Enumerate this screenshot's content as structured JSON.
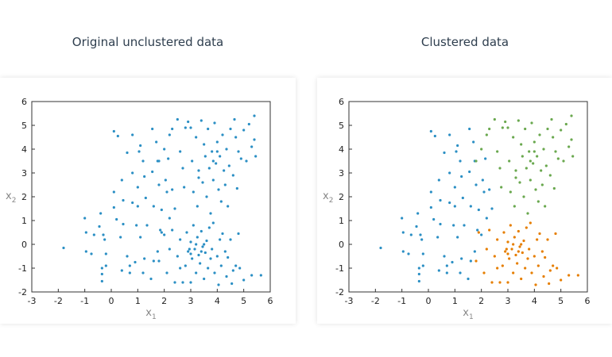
{
  "chart_data": {
    "type": "scatter",
    "xlim": [
      -3,
      6
    ],
    "ylim": [
      -2,
      6
    ],
    "xticks": [
      -3,
      -2,
      -1,
      0,
      1,
      2,
      3,
      4,
      5,
      6
    ],
    "yticks": [
      -2,
      -1,
      0,
      1,
      2,
      3,
      4,
      5,
      6
    ],
    "xlabel": "x",
    "xlabel_sub": "1",
    "ylabel": "x",
    "ylabel_sub": "2",
    "grid": false,
    "colors": {
      "unclustered": "#2b8fc4",
      "clusters": [
        "#2b8fc4",
        "#e67e00",
        "#6aa84f"
      ]
    },
    "charts": [
      {
        "title": "Original unclustered data",
        "colored_by_cluster": false
      },
      {
        "title": "Clustered data",
        "colored_by_cluster": true
      }
    ],
    "points": [
      [
        -1.8,
        -0.15,
        0
      ],
      [
        -1,
        1.1,
        0
      ],
      [
        -0.95,
        0.5,
        0
      ],
      [
        -0.95,
        -0.3,
        0
      ],
      [
        -0.75,
        -0.4,
        0
      ],
      [
        -0.65,
        0.4,
        0
      ],
      [
        -0.45,
        0.75,
        0
      ],
      [
        -0.4,
        1.3,
        0
      ],
      [
        -0.35,
        -1,
        0
      ],
      [
        -0.35,
        -1.25,
        0
      ],
      [
        -0.35,
        -1.55,
        0
      ],
      [
        -0.3,
        0.4,
        0
      ],
      [
        -0.25,
        0.2,
        0
      ],
      [
        -0.2,
        -0.4,
        0
      ],
      [
        -0.2,
        -0.9,
        0
      ],
      [
        0.1,
        4.75,
        0
      ],
      [
        0.25,
        4.55,
        0
      ],
      [
        0.1,
        2.2,
        0
      ],
      [
        0.1,
        1.55,
        0
      ],
      [
        0.2,
        1.05,
        0
      ],
      [
        0.4,
        2.7,
        0
      ],
      [
        0.45,
        1.85,
        0
      ],
      [
        0.6,
        3.85,
        0
      ],
      [
        0.8,
        4.6,
        0
      ],
      [
        0.8,
        3,
        0
      ],
      [
        0.8,
        1.75,
        0
      ],
      [
        0.7,
        -0.9,
        0
      ],
      [
        0.7,
        -1.2,
        0
      ],
      [
        0.95,
        0.8,
        0
      ],
      [
        1,
        2.4,
        0
      ],
      [
        1.05,
        3.9,
        0
      ],
      [
        1.1,
        4.15,
        0
      ],
      [
        1.2,
        3.5,
        0
      ],
      [
        1.25,
        2.85,
        0
      ],
      [
        1.3,
        1.95,
        0
      ],
      [
        1.25,
        -0.6,
        0
      ],
      [
        1.35,
        0.8,
        0
      ],
      [
        1.5,
        -1.45,
        0
      ],
      [
        1.55,
        4.85,
        0
      ],
      [
        1.55,
        3.05,
        0
      ],
      [
        1.6,
        1.6,
        0
      ],
      [
        1.7,
        4.3,
        0
      ],
      [
        1.75,
        3.5,
        0
      ],
      [
        1.8,
        2.5,
        0
      ],
      [
        1.85,
        0.6,
        0
      ],
      [
        1.9,
        1.45,
        0
      ],
      [
        2.05,
        2.7,
        0
      ],
      [
        2.1,
        2.2,
        0
      ],
      [
        2.15,
        3.6,
        0
      ],
      [
        2.2,
        1.1,
        0
      ],
      [
        2.3,
        2.3,
        0
      ],
      [
        2.4,
        1.5,
        0
      ],
      [
        1.0,
        1.6,
        0
      ],
      [
        0.4,
        -1.1,
        0
      ],
      [
        0.6,
        -0.5,
        0
      ],
      [
        1.1,
        0.3,
        0
      ],
      [
        0.45,
        0.85,
        0
      ],
      [
        0.9,
        -0.75,
        0
      ],
      [
        1.2,
        -1.2,
        0
      ],
      [
        1.6,
        -0.7,
        0
      ],
      [
        1.75,
        -0.3,
        0
      ],
      [
        2,
        0.4,
        0
      ],
      [
        0.35,
        0.3,
        0
      ],
      [
        1.8,
        -0.7,
        1
      ],
      [
        1.9,
        0.5,
        1
      ],
      [
        2.1,
        -1.2,
        1
      ],
      [
        2.2,
        -0.2,
        1
      ],
      [
        2.3,
        0.6,
        1
      ],
      [
        2.4,
        -1.6,
        1
      ],
      [
        2.5,
        -0.5,
        1
      ],
      [
        2.6,
        0.2,
        1
      ],
      [
        2.7,
        -1.6,
        1
      ],
      [
        2.8,
        -0.9,
        1
      ],
      [
        2.85,
        0.5,
        1
      ],
      [
        2.9,
        -0.3,
        1
      ],
      [
        3,
        0.1,
        1
      ],
      [
        3,
        -1.6,
        1
      ],
      [
        3.05,
        -0.6,
        1
      ],
      [
        3.1,
        0.8,
        1
      ],
      [
        3.15,
        -0.2,
        1
      ],
      [
        3.2,
        -1.2,
        1
      ],
      [
        3.25,
        0.3,
        1
      ],
      [
        3.3,
        -0.45,
        1
      ],
      [
        3.35,
        -0.8,
        1
      ],
      [
        3.4,
        0.55,
        1
      ],
      [
        3.45,
        -0.1,
        1
      ],
      [
        3.5,
        -1.45,
        1
      ],
      [
        3.55,
        -0.35,
        1
      ],
      [
        3.6,
        0.15,
        1
      ],
      [
        3.65,
        -1.0,
        1
      ],
      [
        3.7,
        0.7,
        1
      ],
      [
        3.75,
        -0.6,
        1
      ],
      [
        3.8,
        -0.2,
        1
      ],
      [
        3.85,
        0.9,
        1
      ],
      [
        3.9,
        -1.2,
        1
      ],
      [
        4,
        -0.5,
        1
      ],
      [
        4.05,
        -1.7,
        1
      ],
      [
        4.1,
        0.2,
        1
      ],
      [
        4.15,
        -0.9,
        1
      ],
      [
        4.2,
        0.45,
        1
      ],
      [
        4.3,
        -0.3,
        1
      ],
      [
        4.35,
        -1.35,
        1
      ],
      [
        4.4,
        -0.55,
        1
      ],
      [
        4.5,
        0.2,
        1
      ],
      [
        4.55,
        -1.65,
        1
      ],
      [
        4.6,
        -1.1,
        1
      ],
      [
        4.7,
        -0.9,
        1
      ],
      [
        4.8,
        0.45,
        1
      ],
      [
        4.85,
        -1.0,
        1
      ],
      [
        5,
        -1.5,
        1
      ],
      [
        5.3,
        -1.3,
        1
      ],
      [
        5.65,
        -1.3,
        1
      ],
      [
        3.2,
        0.0,
        1
      ],
      [
        2.95,
        -0.2,
        1
      ],
      [
        3.5,
        0.0,
        1
      ],
      [
        3.4,
        -0.3,
        1
      ],
      [
        3.0,
        -0.4,
        1
      ],
      [
        2.6,
        -1.0,
        1
      ],
      [
        1.8,
        3.5,
        2
      ],
      [
        2.0,
        4.0,
        2
      ],
      [
        2.2,
        4.6,
        2
      ],
      [
        2.3,
        4.85,
        2
      ],
      [
        2.5,
        5.25,
        2
      ],
      [
        2.6,
        3.9,
        2
      ],
      [
        2.7,
        3.2,
        2
      ],
      [
        2.75,
        2.4,
        2
      ],
      [
        2.8,
        4.9,
        2
      ],
      [
        2.9,
        5.15,
        2
      ],
      [
        3,
        4.9,
        2
      ],
      [
        3.05,
        3.5,
        2
      ],
      [
        3.1,
        2.2,
        2
      ],
      [
        3.2,
        4.5,
        2
      ],
      [
        3.25,
        1.6,
        2
      ],
      [
        3.3,
        3.1,
        2
      ],
      [
        3.4,
        5.2,
        2
      ],
      [
        3.45,
        2.6,
        2
      ],
      [
        3.5,
        4.2,
        2
      ],
      [
        3.55,
        3.7,
        2
      ],
      [
        3.6,
        2.0,
        2
      ],
      [
        3.65,
        4.85,
        2
      ],
      [
        3.7,
        3.2,
        2
      ],
      [
        3.75,
        1.3,
        2
      ],
      [
        3.8,
        3.9,
        2
      ],
      [
        3.85,
        2.7,
        2
      ],
      [
        3.9,
        5.1,
        2
      ],
      [
        3.95,
        3.4,
        2
      ],
      [
        4,
        4.3,
        2
      ],
      [
        4.05,
        2.3,
        2
      ],
      [
        4.1,
        3.7,
        2
      ],
      [
        4.15,
        1.8,
        2
      ],
      [
        4.2,
        4.6,
        2
      ],
      [
        4.25,
        3.1,
        2
      ],
      [
        4.3,
        2.5,
        2
      ],
      [
        4.35,
        4.0,
        2
      ],
      [
        4.4,
        1.6,
        2
      ],
      [
        4.45,
        3.3,
        2
      ],
      [
        4.5,
        4.85,
        2
      ],
      [
        4.6,
        2.9,
        2
      ],
      [
        4.65,
        5.25,
        2
      ],
      [
        4.7,
        4.5,
        2
      ],
      [
        4.75,
        2.35,
        2
      ],
      [
        4.8,
        3.9,
        2
      ],
      [
        4.9,
        3.6,
        2
      ],
      [
        5,
        4.8,
        2
      ],
      [
        5.1,
        3.5,
        2
      ],
      [
        5.2,
        5.05,
        2
      ],
      [
        5.3,
        4.1,
        2
      ],
      [
        5.4,
        5.4,
        2
      ],
      [
        5.45,
        3.7,
        2
      ],
      [
        5.4,
        4.4,
        2
      ],
      [
        3.85,
        3.5,
        2
      ],
      [
        4.0,
        3.9,
        2
      ],
      [
        3.3,
        2.8,
        2
      ]
    ]
  }
}
